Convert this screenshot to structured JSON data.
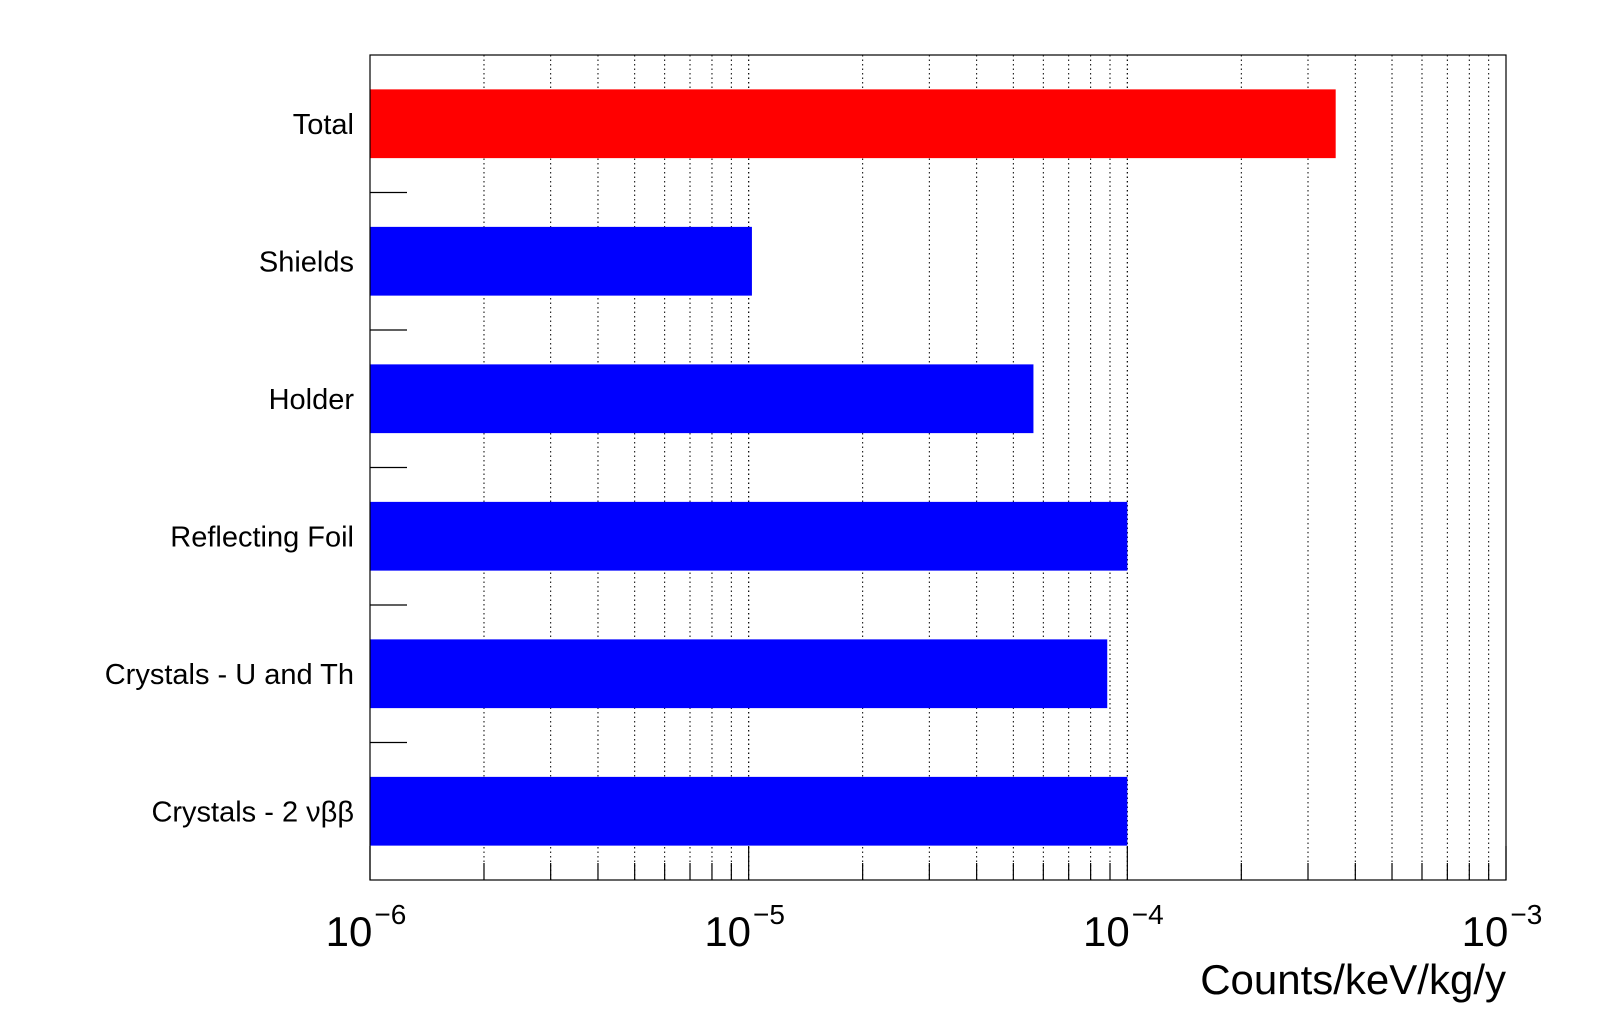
{
  "chart_data": {
    "type": "bar",
    "orientation": "horizontal",
    "x_scale": "log",
    "categories": [
      "Total",
      "Shields",
      "Holder",
      "Reflecting Foil",
      "Crystals - U and Th",
      "Crystals - 2 νββ"
    ],
    "values": [
      0.000355,
      1.02e-05,
      5.65e-05,
      0.0001,
      8.85e-05,
      0.0001
    ],
    "bar_colors": [
      "#ff0000",
      "#0000ff",
      "#0000ff",
      "#0000ff",
      "#0000ff",
      "#0000ff"
    ],
    "xlim": [
      1e-06,
      0.001
    ],
    "x_ticks": [
      {
        "base": "10",
        "exp": "−6"
      },
      {
        "base": "10",
        "exp": "−5"
      },
      {
        "base": "10",
        "exp": "−4"
      },
      {
        "base": "10",
        "exp": "−3"
      }
    ],
    "xlabel": "Counts/keV/kg/y",
    "grid": "vertical dotted"
  }
}
